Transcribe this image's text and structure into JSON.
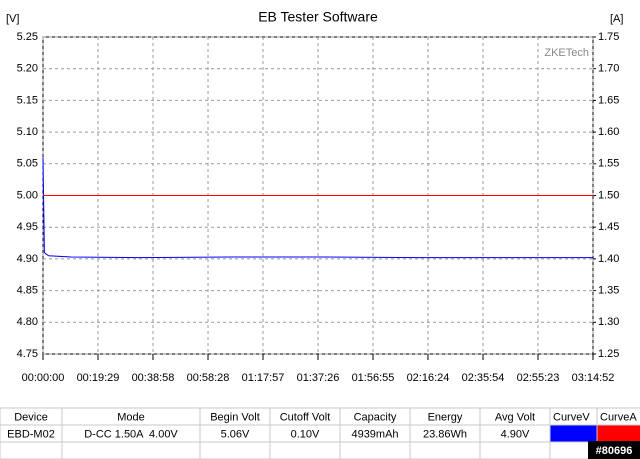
{
  "chart_data": {
    "type": "line",
    "title": "EB Tester Software",
    "y_label": "[V]",
    "y2_label": "[A]",
    "watermark": "ZKETech",
    "xlim": [
      0,
      11692
    ],
    "xticks": [
      {
        "value": 0,
        "label": "00:00:00"
      },
      {
        "value": 1169,
        "label": "00:19:29"
      },
      {
        "value": 2338,
        "label": "00:38:58"
      },
      {
        "value": 3508,
        "label": "00:58:28"
      },
      {
        "value": 4677,
        "label": "01:17:57"
      },
      {
        "value": 5846,
        "label": "01:37:26"
      },
      {
        "value": 7015,
        "label": "01:56:55"
      },
      {
        "value": 8184,
        "label": "02:16:24"
      },
      {
        "value": 9354,
        "label": "02:35:54"
      },
      {
        "value": 10523,
        "label": "02:55:23"
      },
      {
        "value": 11692,
        "label": "03:14:52"
      }
    ],
    "ylim": [
      4.75,
      5.25
    ],
    "yticks": [
      {
        "value": 4.75,
        "label": "4.75"
      },
      {
        "value": 4.8,
        "label": "4.80"
      },
      4.85,
      {
        "value": 4.9,
        "label": "4.90"
      },
      4.95,
      {
        "value": 5.0,
        "label": "5.00"
      },
      5.05,
      {
        "value": 5.1,
        "label": "5.10"
      },
      5.15,
      {
        "value": 5.2,
        "label": "5.20"
      },
      5.25
    ],
    "y2lim": [
      1.25,
      1.75
    ],
    "y2ticks": [
      1.25,
      {
        "value": 1.3,
        "label": "1.30"
      },
      1.35,
      {
        "value": 1.4,
        "label": "1.40"
      },
      1.45,
      {
        "value": 1.5,
        "label": "1.50"
      },
      1.55,
      {
        "value": 1.6,
        "label": "1.60"
      },
      1.65,
      {
        "value": 1.7,
        "label": "1.70"
      },
      1.75
    ],
    "grid": true,
    "series": [
      {
        "name": "CurveV",
        "color": "#0000ff",
        "x": [
          0,
          30,
          60,
          120,
          600,
          2000,
          4000,
          6000,
          8000,
          10000,
          11692
        ],
        "values": [
          5.06,
          4.91,
          4.908,
          4.905,
          4.903,
          4.902,
          4.903,
          4.903,
          4.902,
          4.902,
          4.902
        ]
      },
      {
        "name": "CurveA",
        "color": "#ff0000",
        "axis": "y2",
        "x": [
          0,
          11692
        ],
        "values": [
          1.5,
          1.5
        ]
      }
    ]
  },
  "table": {
    "columns": [
      "Device",
      "Mode",
      "Begin Volt",
      "Cutoff Volt",
      "Capacity",
      "Energy",
      "Avg Volt"
    ],
    "rows": [
      [
        "EBD-M02",
        "D-CC 1.50A  4.00V",
        "5.06V",
        "0.10V",
        "4939mAh",
        "23.86Wh",
        "4.90V"
      ]
    ]
  },
  "badge": "#80696"
}
